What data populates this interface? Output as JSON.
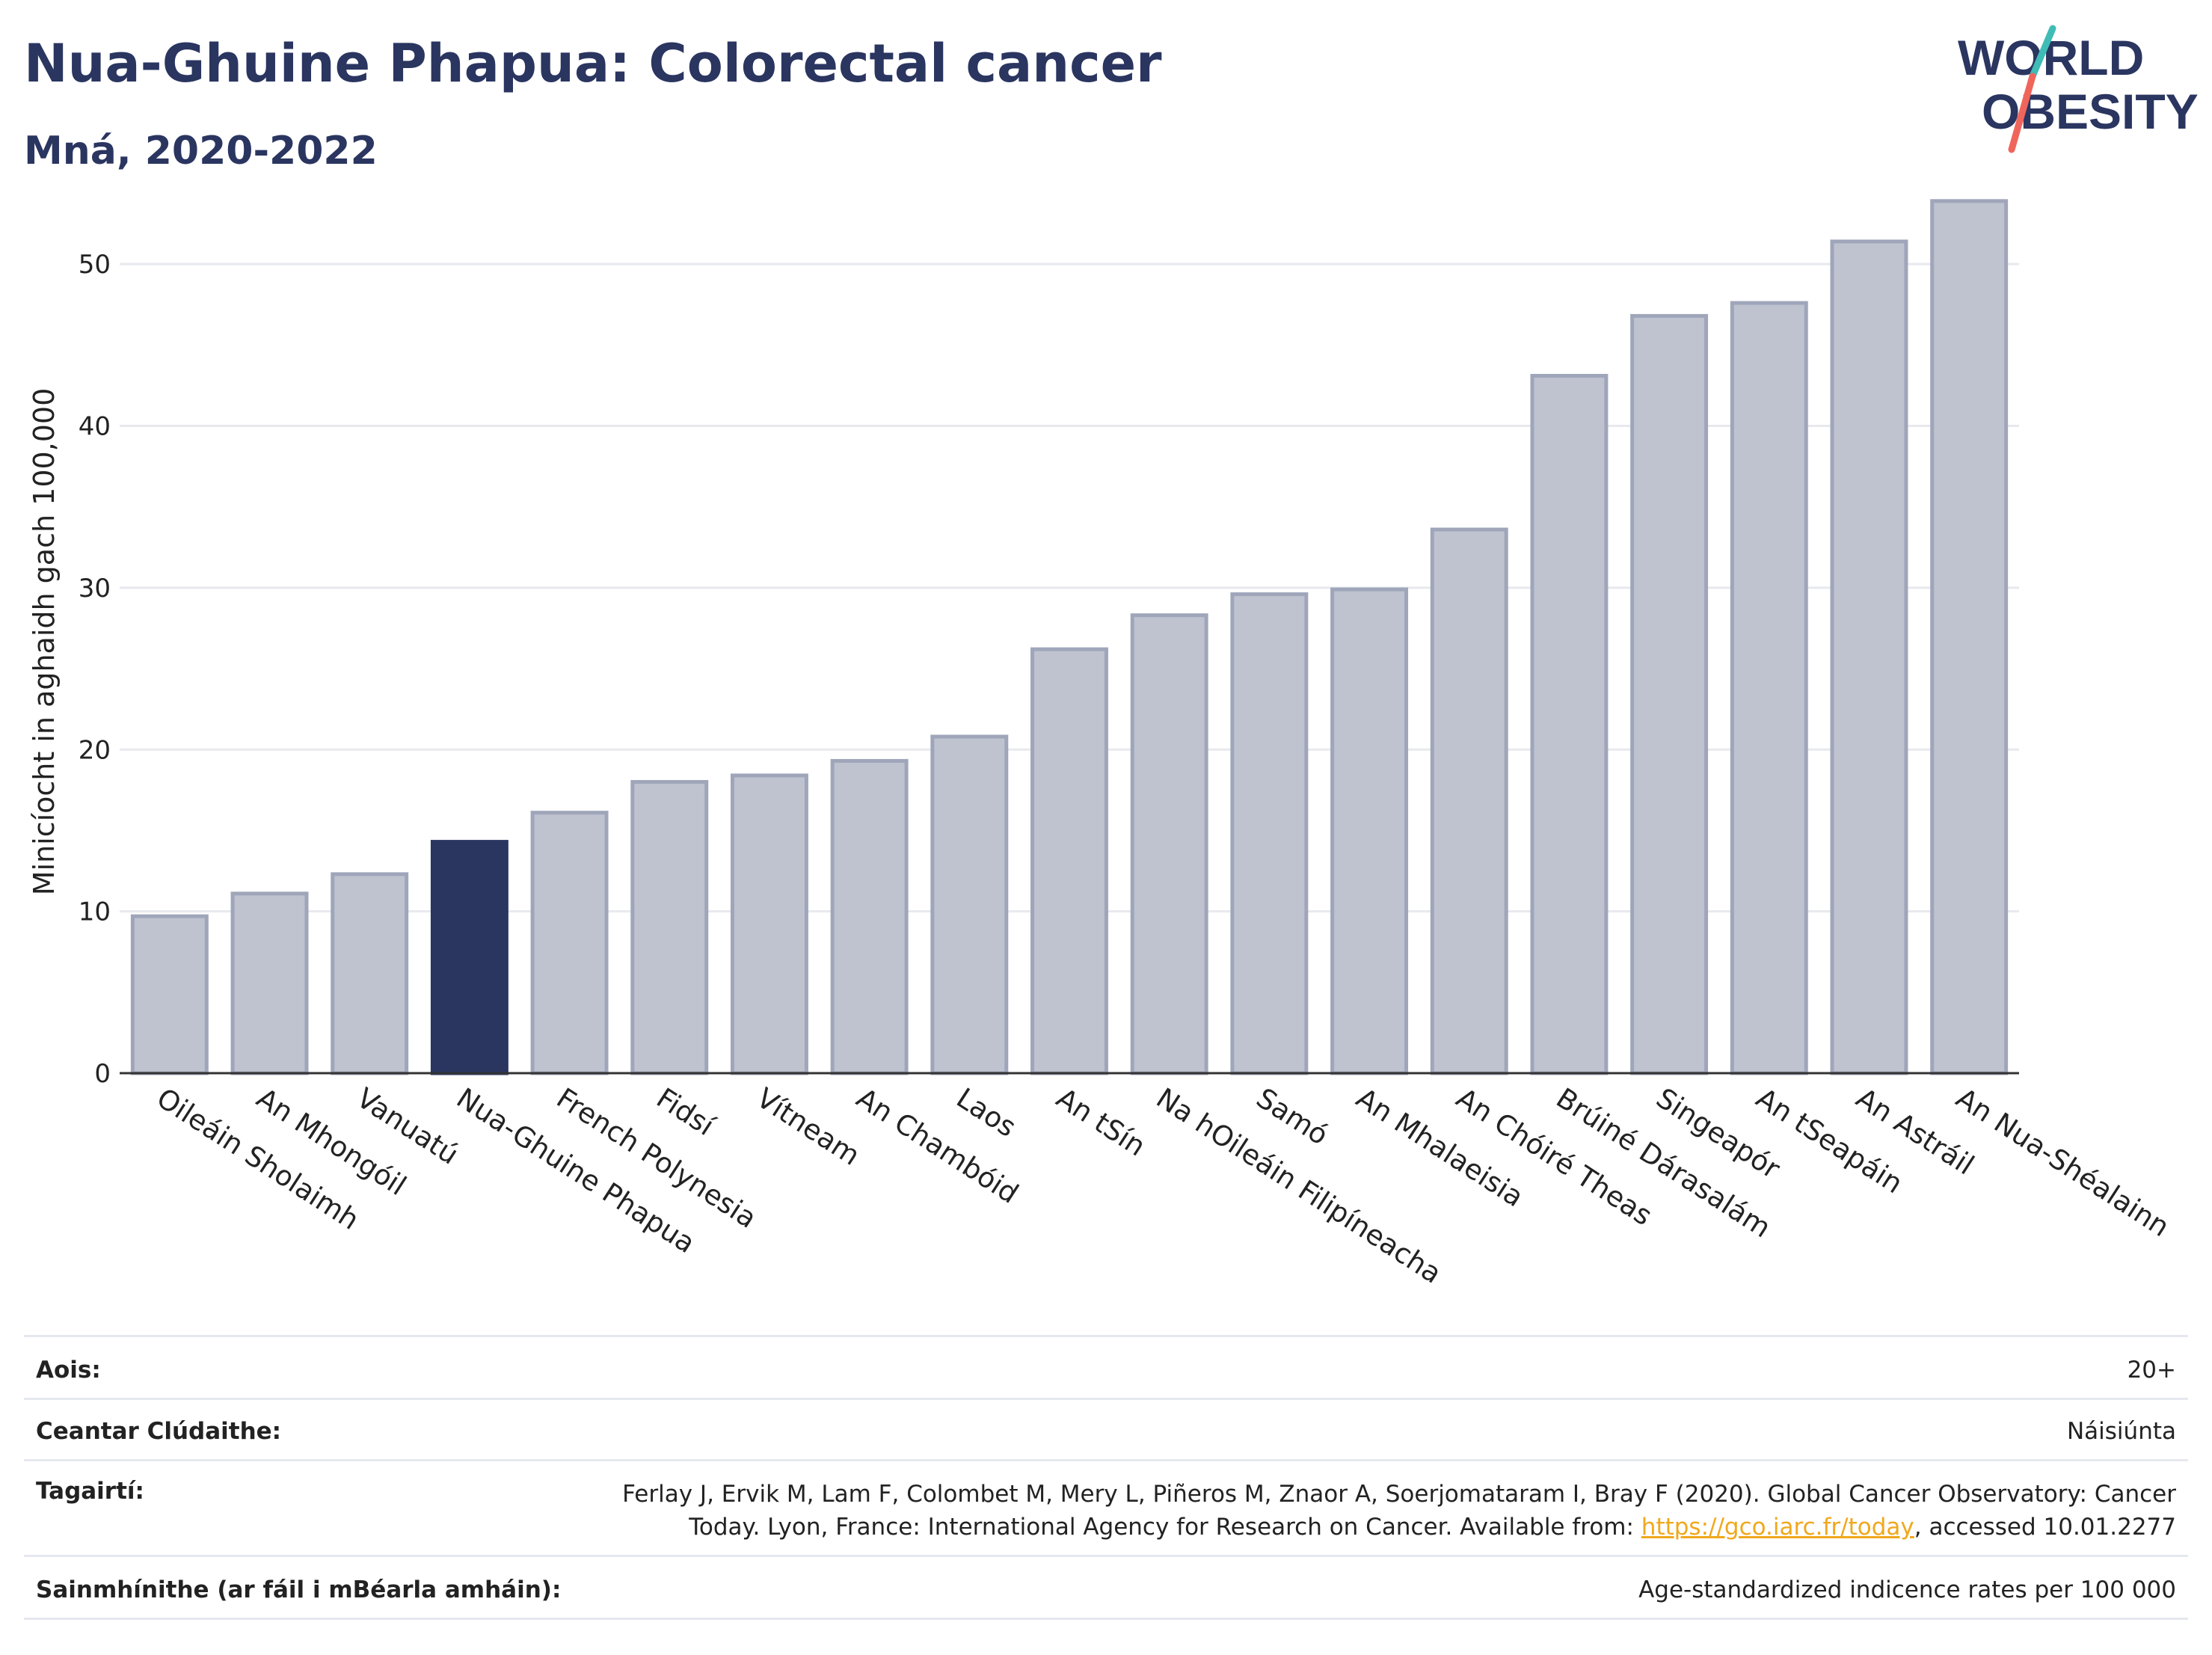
{
  "header": {
    "title": "Nua-Ghuine Phapua: Colorectal cancer",
    "subtitle": "Mná, 2020-2022"
  },
  "logo": {
    "line1": "WORLD",
    "line2": "OBESITY",
    "text_color": "#2a3560",
    "slash_colors": [
      "#3fbcb5",
      "#f0655b"
    ]
  },
  "colors": {
    "bar_default_fill": "#bfc3cf",
    "bar_default_stroke": "#9fa6ba",
    "bar_highlight": "#2a3560",
    "grid": "#e8e9ee",
    "axis": "#333333"
  },
  "chart_data": {
    "type": "bar",
    "ylabel": "Minicíocht in aghaidh gach 100,000",
    "xlabel": "",
    "ylim": [
      0,
      55
    ],
    "yticks": [
      0,
      10,
      20,
      30,
      40,
      50
    ],
    "grid": true,
    "highlight": "Nua-Ghuine Phapua",
    "categories": [
      "Oileáin Sholaimh",
      "An Mhongóil",
      "Vanuatú",
      "Nua-Ghuine Phapua",
      "French Polynesia",
      "Fidsí",
      "Vítneam",
      "An Chambóid",
      "Laos",
      "An tSín",
      "Na hOileáin Filipíneacha",
      "Samó",
      "An Mhalaeisia",
      "An Chóiré Theas",
      "Brúiné Dárasalám",
      "Singeapór",
      "An tSeapáin",
      "An Astráil",
      "An Nua-Shéalainn"
    ],
    "values": [
      9.7,
      11.1,
      12.3,
      14.3,
      16.1,
      18.0,
      18.4,
      19.3,
      20.8,
      26.2,
      28.3,
      29.6,
      29.9,
      33.6,
      43.1,
      46.8,
      47.6,
      51.4,
      53.9
    ]
  },
  "info": {
    "age": {
      "label": "Aois:",
      "value": "20+"
    },
    "coverage": {
      "label": "Ceantar Clúdaithe:",
      "value": "Náisiúnta"
    },
    "references": {
      "label": "Tagairtí:",
      "text_line1": "Ferlay J, Ervik M, Lam F, Colombet M, Mery L, Piñeros M, Znaor A, Soerjomataram I, Bray F (2020). Global Cancer Observatory: Cancer",
      "text_line2_pre": "Today. Lyon, France: International Agency for Research on Cancer. Available from: ",
      "link": "https://gco.iarc.fr/today",
      "text_line2_post": ", accessed 10.01.2277"
    },
    "definitions": {
      "label": "Sainmhínithe (ar fáil i mBéarla amháin):",
      "value": "Age-standardized indicence rates per 100 000"
    }
  }
}
